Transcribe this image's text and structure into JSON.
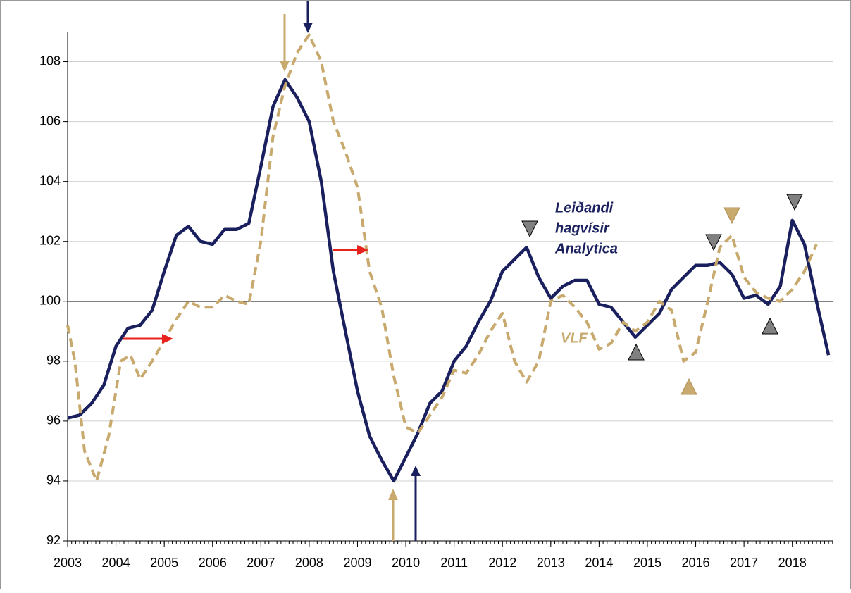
{
  "chart_data": {
    "type": "line",
    "x": [],
    "xlim": [
      2003,
      2018.85
    ],
    "xticks": [
      2003,
      2004,
      2005,
      2006,
      2007,
      2008,
      2009,
      2010,
      2011,
      2012,
      2013,
      2014,
      2015,
      2016,
      2017,
      2018
    ],
    "ylim": [
      92,
      109
    ],
    "yticks": [
      92,
      94,
      96,
      98,
      100,
      102,
      104,
      106,
      108
    ],
    "grid": true,
    "baseline": 100,
    "series": [
      {
        "name": "Leiðandi hagvísir Analytica",
        "label_lines": [
          "Leiðandi",
          "hagvísir",
          "Analytica"
        ],
        "color": "#1a1f5e",
        "style": "solid",
        "x": [
          2003.0,
          2003.25,
          2003.5,
          2003.75,
          2004.0,
          2004.25,
          2004.5,
          2004.75,
          2005.0,
          2005.25,
          2005.5,
          2005.75,
          2006.0,
          2006.25,
          2006.5,
          2006.75,
          2007.0,
          2007.25,
          2007.5,
          2007.75,
          2008.0,
          2008.25,
          2008.5,
          2008.75,
          2009.0,
          2009.25,
          2009.5,
          2009.75,
          2010.0,
          2010.25,
          2010.5,
          2010.75,
          2011.0,
          2011.25,
          2011.5,
          2011.75,
          2012.0,
          2012.25,
          2012.5,
          2012.75,
          2013.0,
          2013.25,
          2013.5,
          2013.75,
          2014.0,
          2014.25,
          2014.5,
          2014.75,
          2015.0,
          2015.25,
          2015.5,
          2015.75,
          2016.0,
          2016.25,
          2016.5,
          2016.75,
          2017.0,
          2017.25,
          2017.5,
          2017.75,
          2018.0,
          2018.25,
          2018.5,
          2018.75
        ],
        "values": [
          96.1,
          96.2,
          96.6,
          97.2,
          98.5,
          99.1,
          99.2,
          99.7,
          101.0,
          102.2,
          102.5,
          102.0,
          101.9,
          102.4,
          102.4,
          102.6,
          104.5,
          106.5,
          107.4,
          106.8,
          106.0,
          104.0,
          101.0,
          99.0,
          97.0,
          95.5,
          94.7,
          94.0,
          94.8,
          95.6,
          96.6,
          97.0,
          98.0,
          98.5,
          99.3,
          100.0,
          101.0,
          101.4,
          101.8,
          100.8,
          100.1,
          100.5,
          100.7,
          100.7,
          99.9,
          99.8,
          99.3,
          98.8,
          99.2,
          99.6,
          100.4,
          100.8,
          101.2,
          101.2,
          101.3,
          100.9,
          100.1,
          100.2,
          99.9,
          100.5,
          102.7,
          101.9,
          100.0,
          98.2
        ]
      },
      {
        "name": "VLF",
        "color": "#c8a96e",
        "style": "dashed",
        "x": [
          2003.0,
          2003.15,
          2003.35,
          2003.6,
          2003.85,
          2004.1,
          2004.3,
          2004.5,
          2004.75,
          2005.0,
          2005.25,
          2005.5,
          2005.75,
          2006.0,
          2006.25,
          2006.5,
          2006.75,
          2007.0,
          2007.25,
          2007.5,
          2007.75,
          2008.0,
          2008.25,
          2008.5,
          2008.75,
          2009.0,
          2009.25,
          2009.5,
          2009.75,
          2010.0,
          2010.25,
          2010.5,
          2010.75,
          2011.0,
          2011.25,
          2011.5,
          2011.75,
          2012.0,
          2012.25,
          2012.5,
          2012.75,
          2013.0,
          2013.25,
          2013.5,
          2013.75,
          2014.0,
          2014.25,
          2014.5,
          2014.75,
          2015.0,
          2015.25,
          2015.5,
          2015.75,
          2016.0,
          2016.25,
          2016.5,
          2016.75,
          2017.0,
          2017.25,
          2017.5,
          2017.75,
          2018.0,
          2018.25,
          2018.5
        ],
        "values": [
          99.2,
          98.0,
          95.0,
          94.0,
          95.5,
          98.0,
          98.2,
          97.4,
          98.0,
          98.7,
          99.4,
          100.0,
          99.8,
          99.8,
          100.2,
          100.0,
          99.9,
          102.0,
          105.5,
          107.2,
          108.3,
          108.9,
          108.0,
          106.0,
          105.0,
          103.8,
          101.0,
          99.8,
          97.5,
          95.8,
          95.6,
          96.2,
          96.8,
          97.7,
          97.6,
          98.2,
          99.0,
          99.6,
          98.0,
          97.3,
          98.0,
          100.0,
          100.2,
          99.8,
          99.3,
          98.4,
          98.6,
          99.3,
          99.0,
          99.3,
          100.0,
          99.7,
          98.0,
          98.3,
          100.0,
          101.8,
          102.2,
          100.8,
          100.3,
          100.1,
          100.0,
          100.4,
          101.0,
          101.9
        ]
      }
    ]
  }
}
